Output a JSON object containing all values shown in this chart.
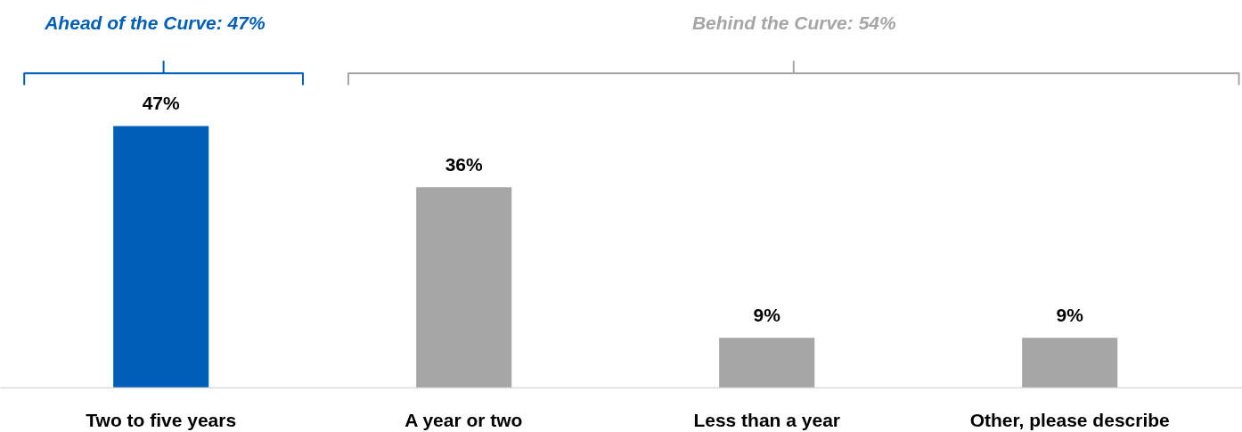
{
  "chart_data": {
    "type": "bar",
    "categories": [
      "Two to five years",
      "A year or two",
      "Less than a year",
      "Other, please describe"
    ],
    "values": [
      47,
      36,
      9,
      9
    ],
    "colors": [
      "#005eb8",
      "#a6a6a6",
      "#a6a6a6",
      "#a6a6a6"
    ],
    "value_labels": [
      "47%",
      "36%",
      "9%",
      "9%"
    ],
    "grid": false,
    "annotations": [
      "Ahead of the Curve: 47%",
      "Behind the Curve: 54%"
    ]
  }
}
